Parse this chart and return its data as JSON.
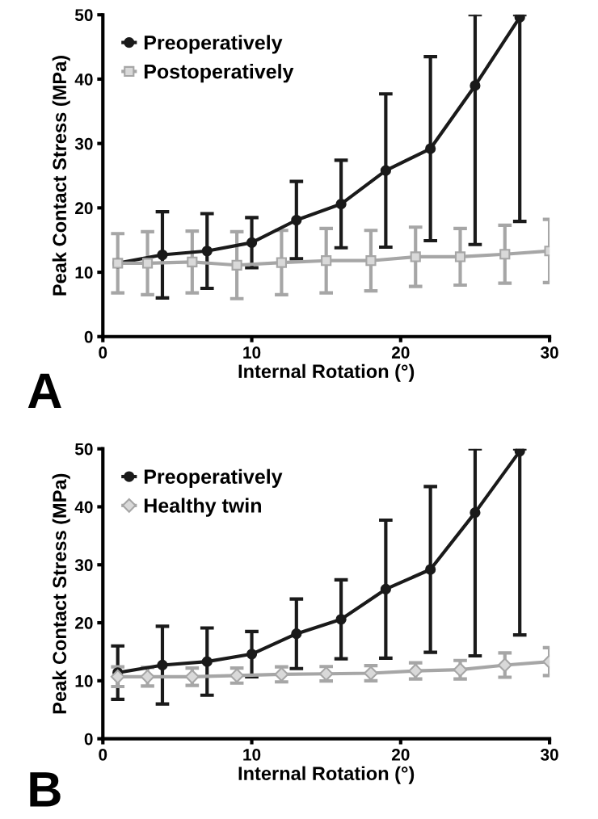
{
  "chart_data": [
    {
      "type": "line",
      "xlabel": "Internal Rotation (°)",
      "ylabel": "Peak Contact Stress (MPa)",
      "annotations": [
        "A"
      ],
      "xlim": [
        0,
        30
      ],
      "ylim": [
        0,
        50
      ],
      "xticks": [
        0,
        10,
        20,
        30
      ],
      "yticks": [
        0,
        10,
        20,
        30,
        40,
        50
      ],
      "grid": false,
      "legend": "top left",
      "line_style": "solid",
      "series": [
        {
          "name": "Preoperatively",
          "color": "#1a1a1a",
          "marker": "circle",
          "x": [
            1,
            4,
            7,
            10,
            13,
            16,
            19,
            22,
            25,
            28
          ],
          "values": [
            11.4,
            12.7,
            13.3,
            14.6,
            18.1,
            20.6,
            25.8,
            29.2,
            39.0,
            49.6
          ],
          "errors": [
            null,
            6.7,
            5.8,
            3.9,
            6.0,
            6.8,
            11.9,
            14.3,
            [
              14.3,
              50
            ],
            [
              17.9,
              50
            ]
          ]
        },
        {
          "name": "Postoperatively",
          "color": "#a6a6a6",
          "marker": "square",
          "x": [
            1,
            3,
            6,
            9,
            12,
            15,
            18,
            21,
            24,
            27,
            30
          ],
          "values": [
            11.4,
            11.4,
            11.6,
            11.1,
            11.5,
            11.8,
            11.8,
            12.4,
            12.4,
            12.8,
            13.3
          ],
          "errors": [
            4.6,
            4.9,
            4.8,
            5.2,
            5.0,
            5.0,
            4.7,
            4.6,
            4.4,
            4.5,
            4.9
          ]
        }
      ]
    },
    {
      "type": "line",
      "xlabel": "Internal Rotation (°)",
      "ylabel": "Peak Contact Stress (MPa)",
      "annotations": [
        "B"
      ],
      "xlim": [
        0,
        30
      ],
      "ylim": [
        0,
        50
      ],
      "xticks": [
        0,
        10,
        20,
        30
      ],
      "yticks": [
        0,
        10,
        20,
        30,
        40,
        50
      ],
      "grid": false,
      "legend": "top left",
      "line_style": "solid",
      "series": [
        {
          "name": "Preoperatively",
          "color": "#1a1a1a",
          "marker": "circle",
          "x": [
            1,
            4,
            7,
            10,
            13,
            16,
            19,
            22,
            25,
            28
          ],
          "values": [
            11.4,
            12.7,
            13.3,
            14.6,
            18.1,
            20.6,
            25.8,
            29.2,
            39.0,
            49.6
          ],
          "errors": [
            4.6,
            6.7,
            5.8,
            3.9,
            6.0,
            6.8,
            11.9,
            14.3,
            [
              14.3,
              50
            ],
            [
              17.9,
              50
            ]
          ]
        },
        {
          "name": "Healthy twin",
          "color": "#a6a6a6",
          "marker": "diamond",
          "x": [
            1,
            3,
            6,
            9,
            12,
            15,
            18,
            21,
            24,
            27,
            30
          ],
          "values": [
            10.7,
            10.7,
            10.7,
            10.9,
            11.1,
            11.2,
            11.3,
            11.7,
            11.9,
            12.7,
            13.3
          ],
          "errors": [
            1.7,
            1.6,
            1.5,
            1.3,
            1.3,
            1.25,
            1.3,
            1.4,
            1.6,
            2.1,
            2.4
          ]
        }
      ]
    }
  ]
}
